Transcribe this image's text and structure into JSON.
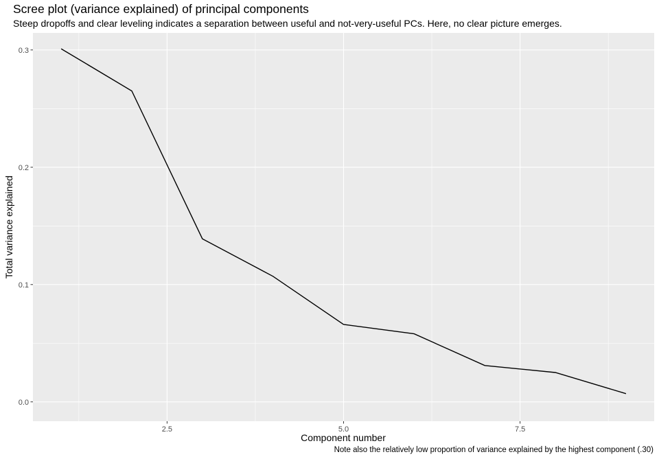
{
  "chart_data": {
    "type": "line",
    "title": "Scree plot (variance explained) of principal components",
    "subtitle": "Steep dropoffs and clear leveling indicates a separation between useful and not-very-useful PCs. Here, no clear picture emerges.",
    "caption": "Note also the relatively low proportion of variance explained by the highest component (.30)",
    "xlabel": "Component number",
    "ylabel": "Total variance explained",
    "x": [
      1,
      2,
      3,
      4,
      5,
      6,
      7,
      8,
      9
    ],
    "y": [
      0.301,
      0.265,
      0.139,
      0.107,
      0.066,
      0.058,
      0.031,
      0.025,
      0.007
    ],
    "xlim": [
      0.6,
      9.4
    ],
    "ylim": [
      -0.0165,
      0.3145
    ],
    "xticks": [
      2.5,
      5.0,
      7.5
    ],
    "xtick_labels": [
      "2.5",
      "5.0",
      "7.5"
    ],
    "yticks": [
      0.0,
      0.1,
      0.2,
      0.3
    ],
    "ytick_labels": [
      "0.0",
      "0.1",
      "0.2",
      "0.3"
    ],
    "grid": true,
    "colors": {
      "panel": "#ebebeb",
      "grid_major": "#ffffff",
      "line": "#000000"
    }
  }
}
